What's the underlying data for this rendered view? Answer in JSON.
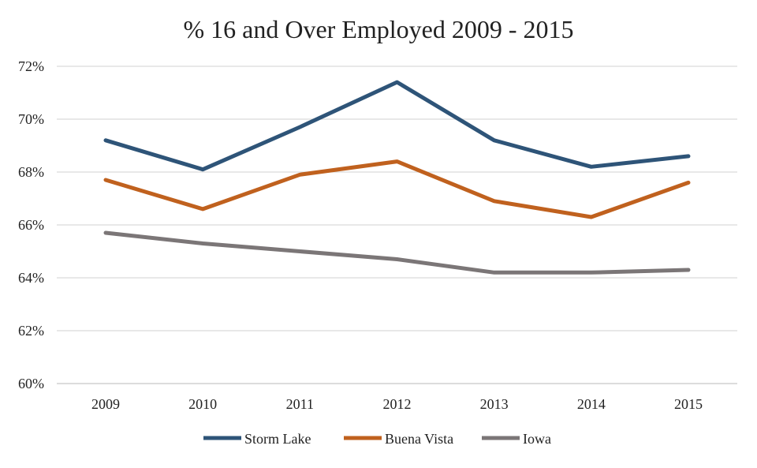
{
  "chart_data": {
    "type": "line",
    "title": "% 16 and Over Employed 2009 - 2015",
    "xlabel": "",
    "ylabel": "",
    "x": [
      "2009",
      "2010",
      "2011",
      "2012",
      "2013",
      "2014",
      "2015"
    ],
    "ylim": [
      60,
      72
    ],
    "yticks": [
      "60%",
      "62%",
      "64%",
      "66%",
      "68%",
      "70%",
      "72%"
    ],
    "ytick_values": [
      60,
      62,
      64,
      66,
      68,
      70,
      72
    ],
    "grid": true,
    "legend_position": "bottom",
    "series": [
      {
        "name": "Storm Lake",
        "color": "#2E5478",
        "values": [
          69.2,
          68.1,
          69.7,
          71.4,
          69.2,
          68.2,
          68.6
        ]
      },
      {
        "name": "Buena Vista",
        "color": "#C0611E",
        "values": [
          67.7,
          66.6,
          67.9,
          68.4,
          66.9,
          66.3,
          67.6
        ]
      },
      {
        "name": "Iowa",
        "color": "#7B7677",
        "values": [
          65.7,
          65.3,
          65.0,
          64.7,
          64.2,
          64.2,
          64.3
        ]
      }
    ]
  }
}
